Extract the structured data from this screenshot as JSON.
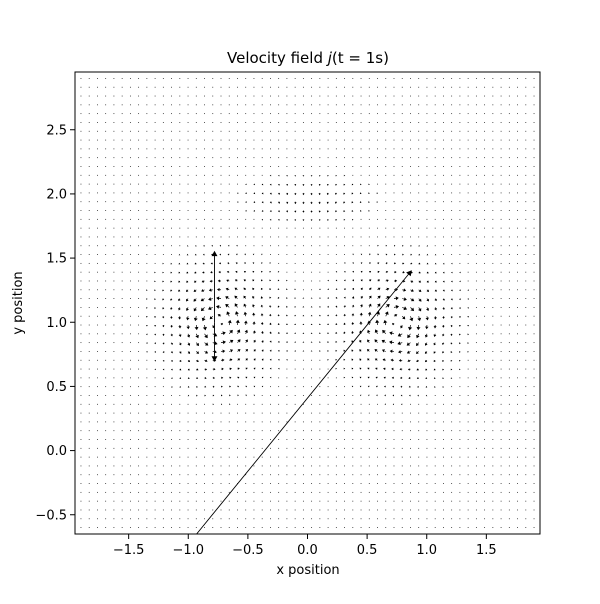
{
  "chart_data": {
    "type": "quiver",
    "title": "Velocity field j(t = 1s)",
    "title_parts": {
      "prefix": "Velocity field ",
      "func": "j",
      "args": "(t = 1s)"
    },
    "xlabel": "x position",
    "ylabel": "y position",
    "xlim": [
      -1.95,
      1.95
    ],
    "ylim": [
      -0.65,
      2.95
    ],
    "xticks": [
      -1.5,
      -1.0,
      -0.5,
      0.0,
      0.5,
      1.0,
      1.5
    ],
    "xtick_labels": [
      "−1.5",
      "−1.0",
      "−0.5",
      "0.0",
      "0.5",
      "1.0",
      "1.5"
    ],
    "yticks": [
      -0.5,
      0.0,
      0.5,
      1.0,
      1.5,
      2.0,
      2.5
    ],
    "ytick_labels": [
      "−0.5",
      "0.0",
      "0.5",
      "1.0",
      "1.5",
      "2.0",
      "2.5"
    ],
    "grid": false,
    "arrow_color": "#000000",
    "field": {
      "x_range": [
        -1.9,
        1.9
      ],
      "y_range": [
        -0.6,
        2.9
      ],
      "nx": 56,
      "ny": 52,
      "vortices": [
        {
          "x": -0.75,
          "y": 1.0,
          "strength": 1.0
        },
        {
          "x": 0.75,
          "y": 1.0,
          "strength": -1.0
        }
      ],
      "long_arrows": [
        {
          "x": -0.93,
          "y": -0.65,
          "u": 1.8,
          "v": 2.05
        },
        {
          "x": -0.78,
          "y": 1.0,
          "u": 0.0,
          "v": 0.55
        },
        {
          "x": -0.78,
          "y": 1.0,
          "u": 0.0,
          "v": -0.3
        }
      ]
    }
  }
}
